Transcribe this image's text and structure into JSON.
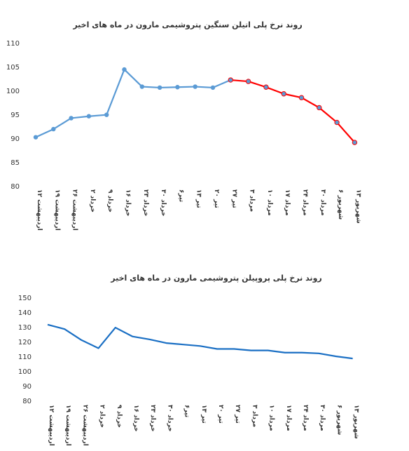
{
  "chart_data": [
    {
      "type": "line",
      "title": "روند نرخ پلی اتیلن سنگین پتروشیمی مارون در ماه های اخیر",
      "xlabel": "",
      "ylabel": "",
      "ylim": [
        80,
        110
      ],
      "yticks": [
        80,
        85,
        90,
        95,
        100,
        105,
        110
      ],
      "grid": false,
      "legend": "none",
      "markers": true,
      "categories": [
        "۱۲ اردیبهشت",
        "۱۹ اردیبهشت",
        "۲۶ اردیبهشت",
        "۲ خرداد",
        "۹ خرداد",
        "۱۶ خرداد",
        "۲۳ خرداد",
        "۳۰ خرداد",
        "۶تیر",
        "۱۳ تیر",
        "۲۰ تیر",
        "۲۷ تیر",
        "۳ مرداد",
        "۱۰ مرداد",
        "۱۷ مرداد",
        "۲۴ مرداد",
        "۳۰ مرداد",
        "۶ شهریور",
        "۱۳ شهریور"
      ],
      "series": [
        {
          "values": [
            90.2,
            91.9,
            94.2,
            94.6,
            94.9,
            104.4,
            100.8,
            100.6,
            100.7,
            100.8,
            100.6,
            102.2,
            101.9,
            100.7,
            99.3,
            98.5,
            96.4,
            93.3,
            89.1
          ],
          "color": "#5B9BD5",
          "highlight_from_index": 11,
          "highlight_color": "#FF0000"
        }
      ]
    },
    {
      "type": "line",
      "title": "روند نرخ پلی پروپیلن پتروشیمی مارون در ماه های اخیر",
      "xlabel": "",
      "ylabel": "",
      "ylim": [
        80,
        150
      ],
      "yticks": [
        80,
        90,
        100,
        110,
        120,
        130,
        140,
        150
      ],
      "grid": false,
      "legend": "none",
      "markers": false,
      "categories": [
        "۱۲ اردیبهشت",
        "۱۹ اردیبهشت",
        "۲۶ اردیبهشت",
        "۲ خرداد",
        "۹ خرداد",
        "۱۶ خرداد",
        "۲۳ خرداد",
        "۳۰ خرداد",
        "۶تیر",
        "۱۳ تیر",
        "۲۰ تیر",
        "۲۷ تیر",
        "۳ مرداد",
        "۱۰ مرداد",
        "۱۷ مرداد",
        "۲۴ مرداد",
        "۳۰ مرداد",
        "۶ شهریور",
        "۱۳ شهریور"
      ],
      "series": [
        {
          "values": [
            131.5,
            128.5,
            121,
            115.5,
            129.5,
            123.5,
            121.5,
            119,
            118,
            117,
            115,
            115,
            114,
            114,
            112.5,
            112.5,
            112,
            110,
            108.5
          ],
          "color": "#1A6FC4"
        }
      ]
    }
  ]
}
